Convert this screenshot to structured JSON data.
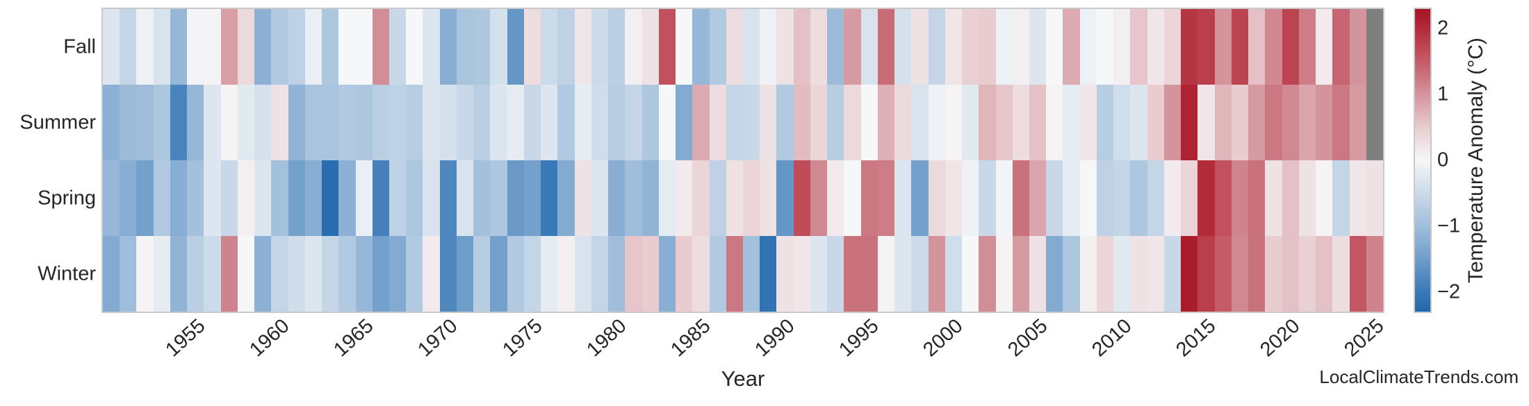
{
  "figure": {
    "xlabel": "Year",
    "watermark": "LocalClimateTrends.com",
    "colorbar_title": "Temperature Anomaly (°C)",
    "colorbar_tick_labels": [
      "2",
      "1",
      "0",
      "−1",
      "−2"
    ],
    "colorbar_tick_values": [
      2,
      1,
      0,
      -1,
      -2
    ],
    "text_color": "#262626",
    "frame_color": "#c9c9c9"
  },
  "chart_data": {
    "type": "heatmap",
    "title": "",
    "xlabel": "Year",
    "ylabel": "",
    "legend_position": "right-colorbar",
    "grid": false,
    "rows": [
      "Fall",
      "Summer",
      "Spring",
      "Winter"
    ],
    "year_start": 1950,
    "year_end": 2025,
    "x_tick_years": [
      1955,
      1960,
      1965,
      1970,
      1975,
      1980,
      1985,
      1990,
      1995,
      2000,
      2005,
      2010,
      2015,
      2020,
      2025
    ],
    "value_unit": "°C temperature anomaly",
    "vmin": -2.3,
    "vmax": 2.3,
    "missing_value_color": "#7f7f7f",
    "colormap_stops": [
      [
        -2.3,
        "#2166ac"
      ],
      [
        -2.0,
        "#3a79b7"
      ],
      [
        -1.5,
        "#6f9dca"
      ],
      [
        -1.0,
        "#a0bedb"
      ],
      [
        -0.5,
        "#ccdbe9"
      ],
      [
        0.0,
        "#f6f7f8"
      ],
      [
        0.5,
        "#e8ccd0"
      ],
      [
        1.0,
        "#d4949c"
      ],
      [
        1.5,
        "#c45b67"
      ],
      [
        2.0,
        "#b32b39"
      ],
      [
        2.3,
        "#a61423"
      ]
    ],
    "series": [
      {
        "name": "Fall",
        "values": [
          -0.3,
          -0.6,
          -0.1,
          -0.35,
          -1.1,
          -0.05,
          0.05,
          0.9,
          0.35,
          -1.2,
          -0.8,
          -0.65,
          -0.15,
          -0.85,
          0.0,
          0.0,
          1.05,
          -0.55,
          0.0,
          -0.3,
          -1.25,
          -0.9,
          -0.85,
          -0.4,
          -1.6,
          0.3,
          -0.5,
          -0.65,
          0.2,
          -0.5,
          -0.7,
          0.1,
          0.25,
          1.6,
          0.0,
          -1.1,
          -0.8,
          0.3,
          -0.35,
          -0.1,
          0.25,
          0.6,
          0.3,
          -1.05,
          0.95,
          -0.35,
          1.35,
          -0.4,
          0.25,
          -0.6,
          0.2,
          0.45,
          0.5,
          -0.1,
          0.1,
          -0.3,
          0.0,
          0.8,
          -0.1,
          0.0,
          0.1,
          0.55,
          0.2,
          0.4,
          1.9,
          1.8,
          1.0,
          1.75,
          0.6,
          1.1,
          1.75,
          1.2,
          0.15,
          1.4,
          1.0,
          null
        ]
      },
      {
        "name": "Summer",
        "values": [
          -1.2,
          -1.05,
          -1.0,
          -0.85,
          -1.85,
          -1.1,
          -0.3,
          0.05,
          -0.25,
          -0.4,
          0.25,
          -1.15,
          -0.9,
          -0.9,
          -0.8,
          -0.85,
          -0.7,
          -0.65,
          -0.75,
          -0.3,
          -0.4,
          -0.55,
          -0.7,
          -0.3,
          -0.2,
          -0.55,
          -0.3,
          -0.8,
          -0.2,
          -0.45,
          -0.75,
          -0.6,
          -0.85,
          0.0,
          -1.3,
          0.8,
          0.3,
          -0.6,
          -0.55,
          0.25,
          -0.8,
          0.65,
          0.4,
          -0.75,
          0.35,
          0.0,
          0.75,
          0.35,
          -0.35,
          -0.1,
          0.05,
          -0.25,
          0.7,
          0.55,
          0.3,
          0.6,
          0.05,
          -0.2,
          0.2,
          -0.75,
          -0.45,
          -0.3,
          0.5,
          1.0,
          2.1,
          0.2,
          0.7,
          0.5,
          0.95,
          1.25,
          1.1,
          0.85,
          1.0,
          1.25,
          0.95,
          null
        ]
      },
      {
        "name": "Spring",
        "values": [
          -1.1,
          -1.25,
          -1.45,
          -0.8,
          -1.25,
          -0.95,
          -0.3,
          -0.55,
          0.1,
          -0.3,
          -0.95,
          -1.45,
          -1.25,
          -2.2,
          -1.2,
          -0.15,
          -1.9,
          -0.65,
          -0.85,
          -0.35,
          -1.8,
          -0.35,
          -0.95,
          -0.85,
          -1.55,
          -1.45,
          -2.0,
          -1.3,
          0.25,
          -0.3,
          -1.25,
          -1.0,
          -1.15,
          -0.2,
          0.15,
          0.4,
          -0.65,
          0.25,
          0.4,
          0.25,
          -1.6,
          1.65,
          1.1,
          0.15,
          0.0,
          1.25,
          1.2,
          -0.3,
          -1.45,
          0.35,
          0.2,
          -0.1,
          -0.55,
          -0.05,
          1.3,
          0.85,
          -0.55,
          -0.2,
          0.0,
          -0.65,
          -0.6,
          -0.85,
          -0.6,
          0.15,
          0.4,
          2.0,
          1.6,
          1.15,
          1.3,
          0.25,
          0.6,
          0.25,
          0.05,
          -0.6,
          0.2,
          0.25
        ]
      },
      {
        "name": "Winter",
        "values": [
          -1.3,
          -1.0,
          0.05,
          -0.2,
          -1.15,
          -0.7,
          -0.5,
          1.15,
          0.0,
          -1.2,
          -0.6,
          -0.45,
          -0.3,
          -0.6,
          -0.8,
          -1.1,
          -1.45,
          -1.3,
          -0.8,
          0.15,
          -1.8,
          -1.5,
          -0.75,
          -1.45,
          -0.8,
          -0.6,
          -0.2,
          0.1,
          -0.35,
          -0.6,
          -1.0,
          0.55,
          0.5,
          -1.25,
          0.5,
          0.3,
          -0.8,
          1.25,
          -0.95,
          -2.1,
          0.25,
          0.2,
          -0.3,
          -0.55,
          1.3,
          1.3,
          0.05,
          -0.3,
          -0.5,
          1.0,
          -0.45,
          0.0,
          1.05,
          0.05,
          0.95,
          0.25,
          -1.3,
          -0.85,
          0.1,
          0.4,
          -0.25,
          0.25,
          0.2,
          -0.55,
          2.2,
          1.8,
          1.5,
          1.1,
          1.3,
          0.5,
          0.6,
          0.45,
          0.6,
          0.3,
          1.55,
          1.15
        ]
      }
    ]
  }
}
